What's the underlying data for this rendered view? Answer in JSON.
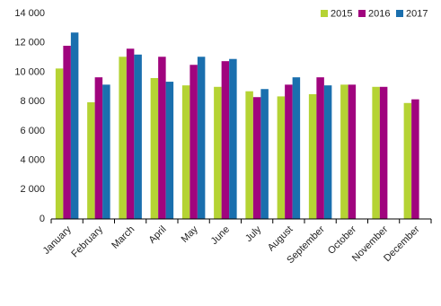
{
  "chart_data": {
    "type": "bar",
    "categories": [
      "January",
      "February",
      "March",
      "April",
      "May",
      "June",
      "July",
      "August",
      "September",
      "October",
      "November",
      "December"
    ],
    "series": [
      {
        "name": "2015",
        "color": "#b5d334",
        "values": [
          10250,
          7950,
          11050,
          9600,
          9100,
          9000,
          8700,
          8350,
          8500,
          9150,
          9000,
          7900
        ]
      },
      {
        "name": "2016",
        "color": "#a0047e",
        "values": [
          11800,
          9650,
          11600,
          11050,
          10500,
          10750,
          8300,
          9150,
          9650,
          9150,
          9000,
          8150
        ]
      },
      {
        "name": "2017",
        "color": "#1a6fae",
        "values": [
          12700,
          9150,
          11200,
          9350,
          11050,
          10900,
          8850,
          9650,
          9100,
          null,
          null,
          null
        ]
      }
    ],
    "ylim": [
      0,
      14000
    ],
    "yticks": [
      0,
      {
        "value": 2000,
        "label": "2 000"
      },
      {
        "value": 4000,
        "label": "4 000"
      },
      {
        "value": 6000,
        "label": "6 000"
      },
      {
        "value": 8000,
        "label": "8 000"
      },
      {
        "value": 10000,
        "label": "10 000"
      },
      {
        "value": 12000,
        "label": "12 000"
      },
      {
        "value": 14000,
        "label": "14 000"
      }
    ],
    "grid": false,
    "legend": "upper right"
  }
}
